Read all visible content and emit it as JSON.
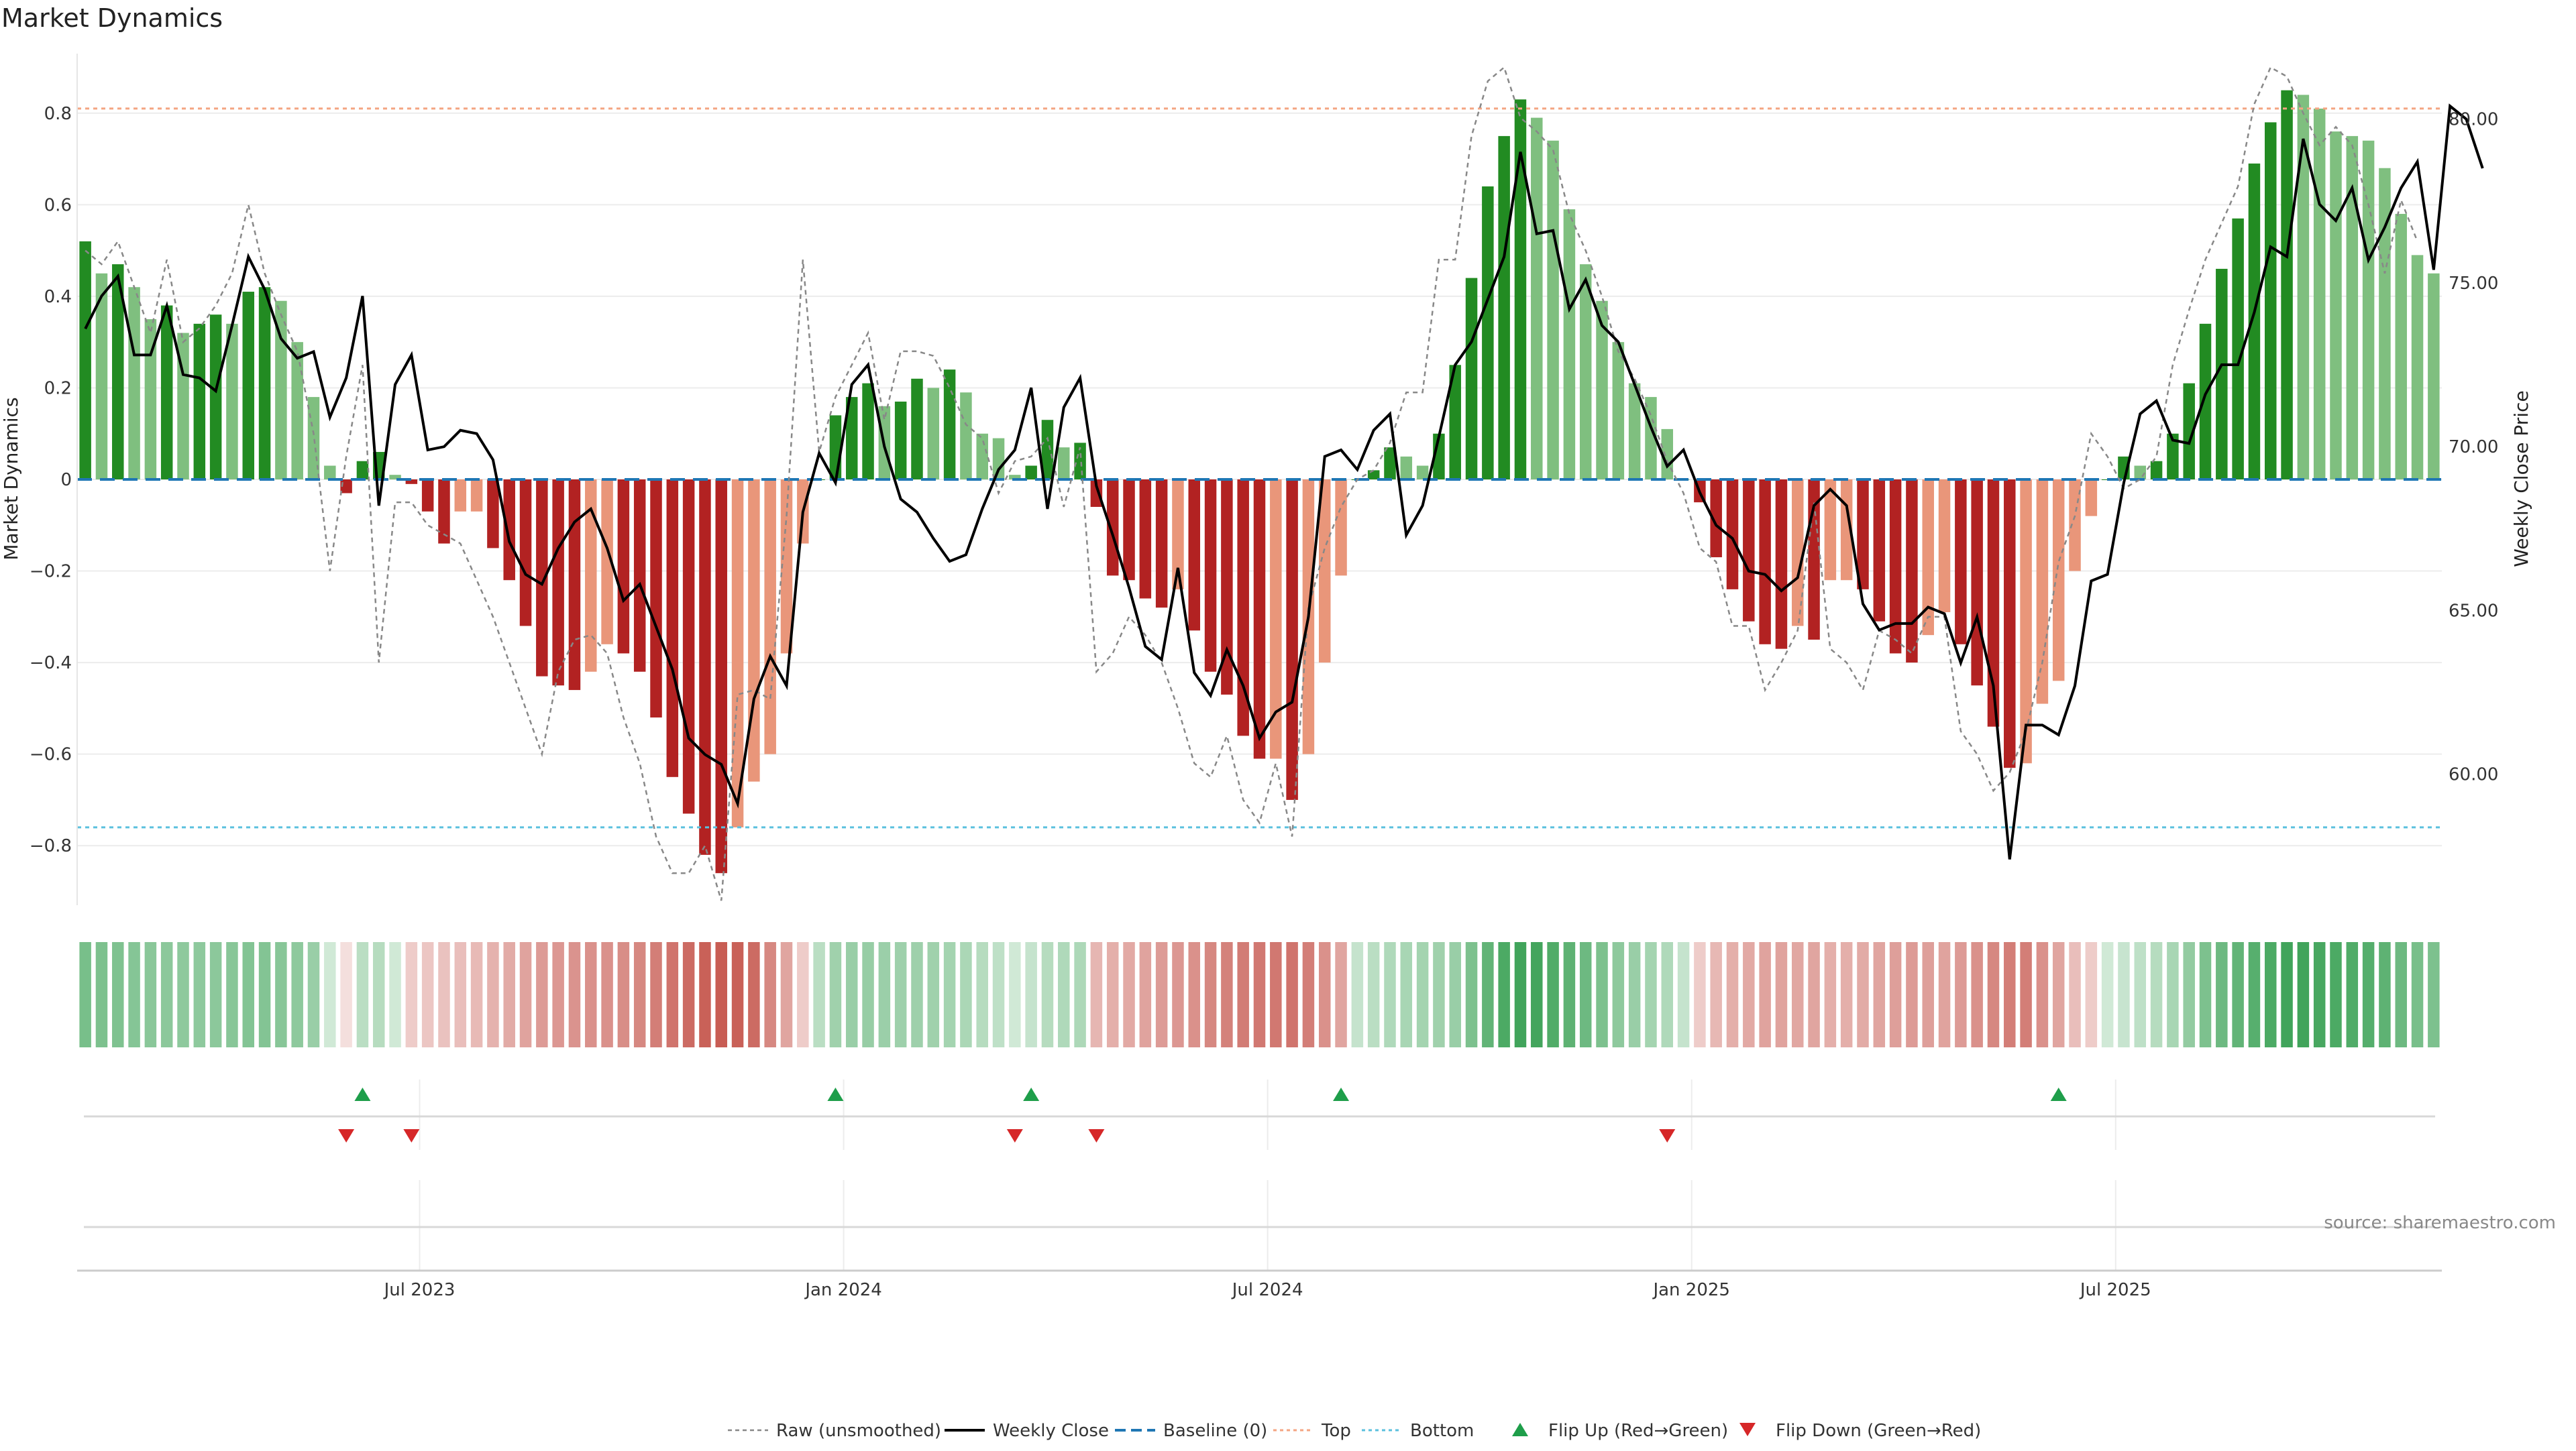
{
  "title": "Market Dynamics",
  "source": "source: sharemaestro.com",
  "colors": {
    "strong_green": "#228B22",
    "light_green": "#7FBF7F",
    "strong_red": "#B22222",
    "light_red": "#E9967A",
    "raw_line": "#888888",
    "close_line": "#000000",
    "baseline": "#1f77b4",
    "top_line": "#F4A582",
    "bottom_line": "#5BC0DE",
    "flip_up": "#1E9E4A",
    "flip_down": "#D62728"
  },
  "chart_data": {
    "type": "bar",
    "title": "Market Dynamics",
    "ylabel": "Market Dynamics",
    "y2label": "Weekly Close Price",
    "ylim": [
      -0.93,
      0.93
    ],
    "y2lim": [
      56.0,
      82.0
    ],
    "yticks": [
      -0.8,
      -0.6,
      -0.4,
      -0.2,
      0,
      0.2,
      0.4,
      0.6,
      0.8
    ],
    "ytick_labels": [
      "−0.8",
      "−0.6",
      "−0.4",
      "−0.2",
      "0",
      "0.2",
      "0.4",
      "0.6",
      "0.8"
    ],
    "y2ticks": [
      60,
      65,
      70,
      75,
      80
    ],
    "y2tick_labels": [
      "60.00",
      "65.00",
      "70.00",
      "75.00",
      "80.00"
    ],
    "xticks": [
      "Jul 2023",
      "Jan 2024",
      "Jul 2024",
      "Jan 2025",
      "Jul 2025"
    ],
    "xtick_positions": [
      21,
      47,
      73,
      99,
      125
    ],
    "top_threshold": 0.81,
    "bottom_threshold": -0.76,
    "grid": true,
    "legend_position": "bottom-center",
    "legend": [
      "Raw (unsmoothed)",
      "Weekly Close",
      "Baseline (0)",
      "Top",
      "Bottom",
      "Flip Up (Red→Green)",
      "Flip Down (Green→Red)"
    ],
    "values": [
      0.52,
      0.45,
      0.47,
      0.42,
      0.35,
      0.38,
      0.32,
      0.34,
      0.36,
      0.34,
      0.41,
      0.42,
      0.39,
      0.3,
      0.18,
      0.03,
      -0.03,
      0.04,
      0.06,
      0.01,
      -0.01,
      -0.07,
      -0.14,
      -0.07,
      -0.07,
      -0.15,
      -0.22,
      -0.32,
      -0.43,
      -0.45,
      -0.46,
      -0.42,
      -0.36,
      -0.38,
      -0.42,
      -0.52,
      -0.65,
      -0.73,
      -0.82,
      -0.86,
      -0.76,
      -0.66,
      -0.6,
      -0.38,
      -0.14,
      0.0,
      0.14,
      0.18,
      0.21,
      0.16,
      0.17,
      0.22,
      0.2,
      0.24,
      0.19,
      0.1,
      0.09,
      0.01,
      0.03,
      0.13,
      0.07,
      0.08,
      -0.06,
      -0.21,
      -0.22,
      -0.26,
      -0.28,
      -0.24,
      -0.33,
      -0.42,
      -0.47,
      -0.56,
      -0.61,
      -0.61,
      -0.7,
      -0.6,
      -0.4,
      -0.21,
      0.0,
      0.02,
      0.07,
      0.05,
      0.03,
      0.1,
      0.25,
      0.44,
      0.64,
      0.75,
      0.83,
      0.79,
      0.74,
      0.59,
      0.47,
      0.39,
      0.3,
      0.21,
      0.18,
      0.11,
      0.0,
      -0.05,
      -0.17,
      -0.24,
      -0.31,
      -0.36,
      -0.37,
      -0.32,
      -0.35,
      -0.22,
      -0.22,
      -0.24,
      -0.31,
      -0.38,
      -0.4,
      -0.34,
      -0.29,
      -0.36,
      -0.45,
      -0.54,
      -0.63,
      -0.62,
      -0.49,
      -0.44,
      -0.2,
      -0.08,
      0.0,
      0.05,
      0.03,
      0.04,
      0.1,
      0.21,
      0.34,
      0.46,
      0.57,
      0.69,
      0.78,
      0.85,
      0.84,
      0.81,
      0.76,
      0.75,
      0.74,
      0.68,
      0.58,
      0.49,
      0.45
    ],
    "series": [
      {
        "name": "Raw (unsmoothed)",
        "values": [
          0.5,
          0.47,
          0.52,
          0.42,
          0.32,
          0.48,
          0.3,
          0.33,
          0.38,
          0.45,
          0.6,
          0.45,
          0.36,
          0.28,
          0.1,
          -0.2,
          0.05,
          0.25,
          -0.4,
          -0.05,
          -0.05,
          -0.1,
          -0.12,
          -0.14,
          -0.22,
          -0.3,
          -0.4,
          -0.5,
          -0.6,
          -0.42,
          -0.35,
          -0.34,
          -0.38,
          -0.52,
          -0.62,
          -0.78,
          -0.86,
          -0.86,
          -0.8,
          -0.92,
          -0.47,
          -0.46,
          -0.48,
          -0.08,
          0.48,
          0.06,
          0.18,
          0.25,
          0.32,
          0.13,
          0.28,
          0.28,
          0.27,
          0.2,
          0.12,
          0.09,
          -0.03,
          0.04,
          0.05,
          0.09,
          -0.06,
          0.07,
          -0.42,
          -0.38,
          -0.3,
          -0.34,
          -0.4,
          -0.5,
          -0.62,
          -0.65,
          -0.56,
          -0.7,
          -0.75,
          -0.62,
          -0.78,
          -0.28,
          -0.15,
          -0.06,
          0.0,
          0.02,
          0.08,
          0.19,
          0.19,
          0.48,
          0.48,
          0.75,
          0.87,
          0.9,
          0.79,
          0.76,
          0.72,
          0.58,
          0.5,
          0.4,
          0.28,
          0.22,
          0.14,
          0.04,
          -0.03,
          -0.15,
          -0.18,
          -0.32,
          -0.32,
          -0.46,
          -0.4,
          -0.33,
          -0.05,
          -0.37,
          -0.4,
          -0.46,
          -0.33,
          -0.35,
          -0.38,
          -0.3,
          -0.3,
          -0.55,
          -0.6,
          -0.68,
          -0.64,
          -0.55,
          -0.4,
          -0.18,
          -0.08,
          0.1,
          0.05,
          -0.02,
          0.0,
          0.05,
          0.25,
          0.37,
          0.48,
          0.56,
          0.64,
          0.82,
          0.9,
          0.88,
          0.8,
          0.73,
          0.77,
          0.73,
          0.6,
          0.45,
          0.61,
          0.52
        ]
      },
      {
        "name": "Weekly Close",
        "values": [
          73.6,
          74.6,
          75.2,
          72.8,
          72.8,
          74.3,
          72.2,
          72.1,
          71.7,
          73.7,
          75.8,
          74.8,
          73.3,
          72.7,
          72.9,
          70.9,
          72.1,
          74.6,
          68.2,
          71.9,
          72.8,
          69.9,
          70.0,
          70.5,
          70.4,
          69.6,
          67.1,
          66.1,
          65.8,
          66.9,
          67.7,
          68.1,
          66.9,
          65.3,
          65.8,
          64.5,
          63.2,
          61.1,
          60.6,
          60.3,
          59.1,
          62.3,
          63.6,
          62.7,
          68.0,
          69.8,
          68.9,
          71.9,
          72.5,
          70.0,
          68.4,
          68.0,
          67.2,
          66.5,
          66.7,
          68.1,
          69.3,
          69.9,
          71.8,
          68.1,
          71.2,
          72.1,
          68.8,
          67.3,
          65.7,
          63.9,
          63.5,
          66.3,
          63.1,
          62.4,
          63.8,
          62.7,
          61.1,
          61.9,
          62.2,
          64.8,
          69.7,
          69.9,
          69.3,
          70.5,
          71.0,
          67.3,
          68.2,
          70.3,
          72.5,
          73.2,
          74.5,
          75.8,
          79.0,
          76.5,
          76.6,
          74.2,
          75.1,
          73.7,
          73.2,
          71.9,
          70.6,
          69.4,
          69.9,
          68.6,
          67.6,
          67.2,
          66.2,
          66.1,
          65.6,
          66.0,
          68.2,
          68.7,
          68.2,
          65.2,
          64.4,
          64.6,
          64.6,
          65.1,
          64.9,
          63.4,
          64.8,
          62.7,
          57.4,
          61.5,
          61.5,
          61.2,
          62.7,
          65.9,
          66.1,
          68.9,
          71.0,
          71.4,
          70.2,
          70.1,
          71.6,
          72.5,
          72.5,
          74.1,
          76.1,
          75.8,
          79.4,
          77.4,
          76.9,
          77.9,
          75.7,
          76.7,
          77.9,
          78.7,
          75.4,
          80.4,
          80.0,
          78.5
        ]
      }
    ],
    "flip_up_weeks": [
      17,
      46,
      58,
      77,
      121
    ],
    "flip_down_weeks": [
      16,
      20,
      57,
      62,
      97
    ],
    "strip_levels": [
      0.5,
      0.48,
      0.47,
      0.44,
      0.42,
      0.41,
      0.4,
      0.4,
      0.41,
      0.43,
      0.45,
      0.45,
      0.43,
      0.4,
      0.35,
      0.1,
      0.05,
      0.2,
      0.22,
      0.1,
      0.15,
      0.18,
      0.2,
      0.22,
      0.24,
      0.28,
      0.32,
      0.36,
      0.4,
      0.42,
      0.44,
      0.45,
      0.45,
      0.47,
      0.5,
      0.55,
      0.6,
      0.65,
      0.7,
      0.72,
      0.7,
      0.65,
      0.5,
      0.35,
      0.15,
      0.2,
      0.32,
      0.35,
      0.36,
      0.34,
      0.33,
      0.33,
      0.32,
      0.3,
      0.27,
      0.22,
      0.18,
      0.1,
      0.15,
      0.22,
      0.25,
      0.26,
      0.26,
      0.3,
      0.33,
      0.36,
      0.4,
      0.42,
      0.45,
      0.5,
      0.53,
      0.56,
      0.58,
      0.58,
      0.6,
      0.55,
      0.45,
      0.35,
      0.15,
      0.2,
      0.25,
      0.28,
      0.3,
      0.32,
      0.35,
      0.48,
      0.6,
      0.7,
      0.75,
      0.74,
      0.68,
      0.62,
      0.55,
      0.48,
      0.4,
      0.35,
      0.3,
      0.25,
      0.15,
      0.15,
      0.25,
      0.3,
      0.33,
      0.36,
      0.36,
      0.34,
      0.35,
      0.3,
      0.3,
      0.32,
      0.35,
      0.38,
      0.4,
      0.38,
      0.36,
      0.4,
      0.45,
      0.5,
      0.55,
      0.55,
      0.45,
      0.35,
      0.22,
      0.15,
      0.1,
      0.14,
      0.18,
      0.22,
      0.28,
      0.38,
      0.48,
      0.55,
      0.6,
      0.65,
      0.7,
      0.75,
      0.75,
      0.72,
      0.7,
      0.68,
      0.66,
      0.62,
      0.55,
      0.5,
      0.48
    ]
  }
}
